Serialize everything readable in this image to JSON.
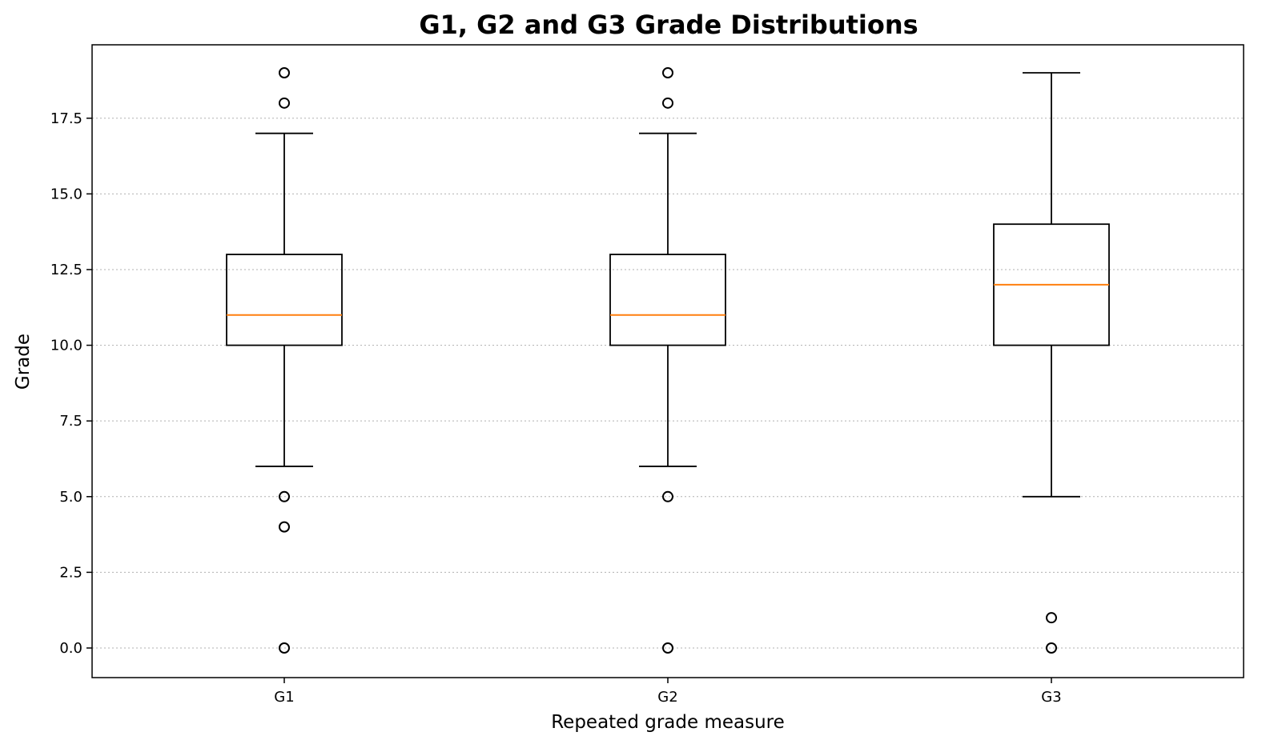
{
  "chart_data": {
    "type": "box",
    "title": "G1, G2 and G3 Grade Distributions",
    "xlabel": "Repeated grade measure",
    "ylabel": "Grade",
    "ylim": [
      -1,
      20
    ],
    "yticks": [
      0.0,
      2.5,
      5.0,
      7.5,
      10.0,
      12.5,
      15.0,
      17.5
    ],
    "ytick_labels": [
      "0.0",
      "2.5",
      "5.0",
      "7.5",
      "10.0",
      "12.5",
      "15.0",
      "17.5"
    ],
    "grid": "y-dotted",
    "categories": [
      "G1",
      "G2",
      "G3"
    ],
    "boxes": [
      {
        "label": "G1",
        "whisker_low": 6,
        "q1": 10,
        "median": 11,
        "q3": 13,
        "whisker_high": 17,
        "fliers": [
          19,
          18,
          5,
          4,
          0
        ]
      },
      {
        "label": "G2",
        "whisker_low": 6,
        "q1": 10,
        "median": 11,
        "q3": 13,
        "whisker_high": 17,
        "fliers": [
          19,
          18,
          5,
          0
        ]
      },
      {
        "label": "G3",
        "whisker_low": 5,
        "q1": 10,
        "median": 12,
        "q3": 14,
        "whisker_high": 19,
        "fliers": [
          1,
          0
        ]
      }
    ],
    "colors": {
      "box": "#000000",
      "median": "#ff7f0e",
      "grid": "#b0b0b0"
    }
  }
}
